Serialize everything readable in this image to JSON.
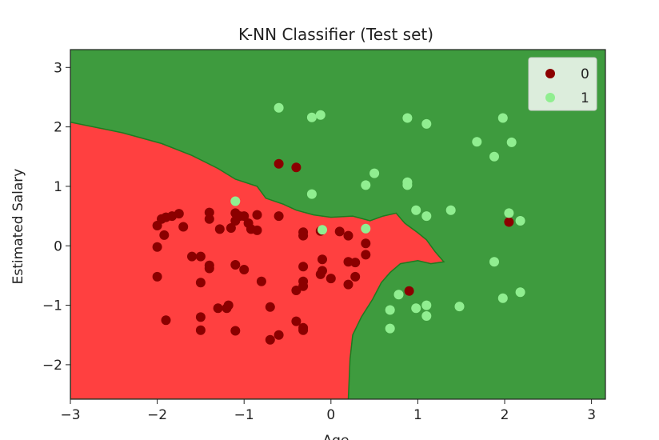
{
  "chart_data": {
    "type": "scatter",
    "title": "K-NN Classifier (Test set)",
    "xlabel": "Age",
    "ylabel": "Estimated Salary",
    "xlim": [
      -3.0,
      3.16
    ],
    "ylim": [
      -2.58,
      3.3
    ],
    "xticks": [
      -3,
      -2,
      -1,
      0,
      1,
      2,
      3
    ],
    "xtick_labels": [
      "−3",
      "−2",
      "−1",
      "0",
      "1",
      "2",
      "3"
    ],
    "yticks": [
      -2,
      -1,
      0,
      1,
      2,
      3
    ],
    "ytick_labels": [
      "−2",
      "−1",
      "0",
      "1",
      "2",
      "3"
    ],
    "grid": false,
    "legend_position": "top-right",
    "background_regions": [
      {
        "class": "0",
        "color": "#ff4040"
      },
      {
        "class": "1",
        "color": "#3e9b3e"
      }
    ],
    "decision_boundary": [
      [
        -3.0,
        2.08
      ],
      [
        -2.4,
        1.9
      ],
      [
        -1.95,
        1.72
      ],
      [
        -1.6,
        1.52
      ],
      [
        -1.3,
        1.3
      ],
      [
        -1.1,
        1.12
      ],
      [
        -0.85,
        1.0
      ],
      [
        -0.75,
        0.8
      ],
      [
        -0.55,
        0.7
      ],
      [
        -0.4,
        0.6
      ],
      [
        -0.2,
        0.52
      ],
      [
        0.0,
        0.48
      ],
      [
        0.25,
        0.5
      ],
      [
        0.45,
        0.42
      ],
      [
        0.6,
        0.5
      ],
      [
        0.75,
        0.55
      ],
      [
        0.85,
        0.38
      ],
      [
        1.0,
        0.22
      ],
      [
        1.1,
        0.1
      ],
      [
        1.2,
        -0.1
      ],
      [
        1.3,
        -0.27
      ],
      [
        1.15,
        -0.3
      ],
      [
        1.0,
        -0.25
      ],
      [
        0.8,
        -0.3
      ],
      [
        0.68,
        -0.45
      ],
      [
        0.58,
        -0.62
      ],
      [
        0.48,
        -0.9
      ],
      [
        0.35,
        -1.2
      ],
      [
        0.25,
        -1.5
      ],
      [
        0.22,
        -1.9
      ],
      [
        0.2,
        -2.58
      ],
      [
        -3.0,
        -2.58
      ]
    ],
    "series": [
      {
        "name": "0",
        "color": "#8b0000",
        "points": [
          [
            -2.0,
            0.34
          ],
          [
            -1.95,
            0.45
          ],
          [
            -1.9,
            0.48
          ],
          [
            -1.83,
            0.5
          ],
          [
            -1.75,
            0.54
          ],
          [
            -1.92,
            0.18
          ],
          [
            -2.0,
            -0.02
          ],
          [
            -1.7,
            0.32
          ],
          [
            -1.4,
            0.56
          ],
          [
            -1.4,
            0.45
          ],
          [
            -1.28,
            0.28
          ],
          [
            -1.15,
            0.3
          ],
          [
            -1.1,
            0.55
          ],
          [
            -1.1,
            0.42
          ],
          [
            -1.05,
            0.5
          ],
          [
            -1.0,
            0.5
          ],
          [
            -0.95,
            0.38
          ],
          [
            -0.92,
            0.28
          ],
          [
            -0.85,
            0.26
          ],
          [
            -0.85,
            0.52
          ],
          [
            -0.6,
            0.5
          ],
          [
            -0.6,
            1.38
          ],
          [
            -0.4,
            1.32
          ],
          [
            -0.32,
            0.23
          ],
          [
            -0.32,
            0.17
          ],
          [
            -0.12,
            0.25
          ],
          [
            0.1,
            0.24
          ],
          [
            0.2,
            0.17
          ],
          [
            0.4,
            0.04
          ],
          [
            0.4,
            -0.15
          ],
          [
            -1.6,
            -0.18
          ],
          [
            -1.5,
            -0.18
          ],
          [
            -1.4,
            -0.33
          ],
          [
            -1.4,
            -0.38
          ],
          [
            -1.5,
            -0.62
          ],
          [
            -2.0,
            -0.52
          ],
          [
            -1.1,
            -0.32
          ],
          [
            -1.0,
            -0.4
          ],
          [
            -0.8,
            -0.6
          ],
          [
            -0.32,
            -0.35
          ],
          [
            -0.32,
            -0.6
          ],
          [
            -0.32,
            -0.68
          ],
          [
            -0.4,
            -0.75
          ],
          [
            -0.1,
            -0.23
          ],
          [
            -0.1,
            -0.42
          ],
          [
            -0.12,
            -0.48
          ],
          [
            0.0,
            -0.55
          ],
          [
            0.2,
            -0.27
          ],
          [
            0.28,
            -0.28
          ],
          [
            0.28,
            -0.52
          ],
          [
            0.2,
            -0.65
          ],
          [
            0.9,
            -0.76
          ],
          [
            -1.9,
            -1.25
          ],
          [
            -1.5,
            -1.2
          ],
          [
            -1.5,
            -1.42
          ],
          [
            -1.3,
            -1.05
          ],
          [
            -1.2,
            -1.05
          ],
          [
            -1.18,
            -1.0
          ],
          [
            -1.1,
            -1.43
          ],
          [
            -0.7,
            -1.03
          ],
          [
            -0.7,
            -1.58
          ],
          [
            -0.6,
            -1.5
          ],
          [
            -0.4,
            -1.27
          ],
          [
            -0.32,
            -1.38
          ],
          [
            -0.32,
            -1.42
          ],
          [
            2.05,
            0.4
          ]
        ]
      },
      {
        "name": "1",
        "color": "#90ee90",
        "points": [
          [
            -0.6,
            2.32
          ],
          [
            -0.22,
            2.16
          ],
          [
            -0.12,
            2.2
          ],
          [
            0.88,
            2.15
          ],
          [
            1.1,
            2.05
          ],
          [
            1.98,
            2.15
          ],
          [
            1.68,
            1.75
          ],
          [
            2.08,
            1.74
          ],
          [
            1.88,
            1.5
          ],
          [
            0.5,
            1.22
          ],
          [
            0.4,
            1.02
          ],
          [
            0.88,
            1.07
          ],
          [
            0.88,
            1.02
          ],
          [
            -0.22,
            0.87
          ],
          [
            -1.1,
            0.75
          ],
          [
            -0.1,
            0.27
          ],
          [
            0.4,
            0.29
          ],
          [
            0.98,
            0.6
          ],
          [
            1.1,
            0.5
          ],
          [
            1.38,
            0.6
          ],
          [
            2.05,
            0.55
          ],
          [
            2.18,
            0.42
          ],
          [
            1.88,
            -0.27
          ],
          [
            0.78,
            -0.82
          ],
          [
            0.68,
            -1.08
          ],
          [
            0.98,
            -1.05
          ],
          [
            1.1,
            -1.0
          ],
          [
            1.1,
            -1.18
          ],
          [
            1.48,
            -1.02
          ],
          [
            0.68,
            -1.39
          ],
          [
            1.98,
            -0.88
          ],
          [
            2.18,
            -0.78
          ]
        ]
      }
    ]
  }
}
